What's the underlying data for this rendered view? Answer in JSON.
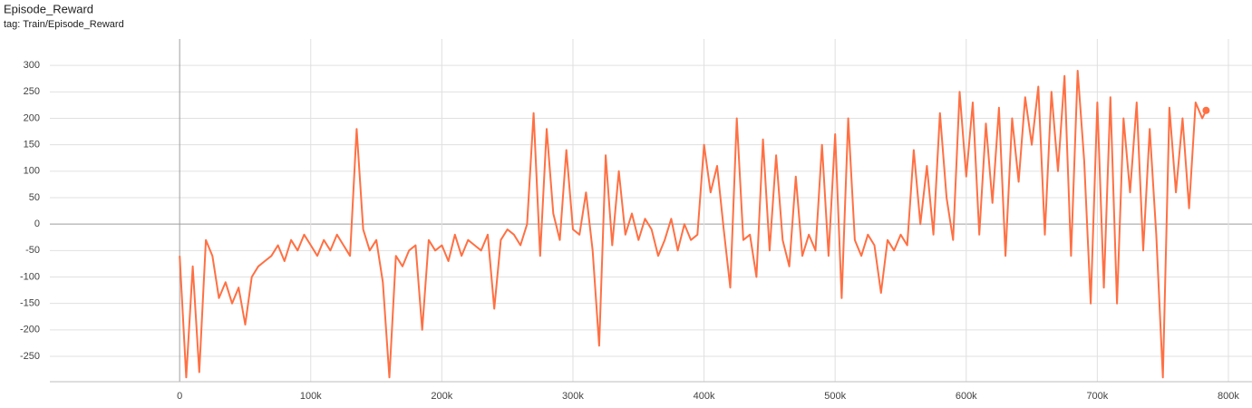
{
  "chart_data": {
    "type": "line",
    "title": "Episode_Reward",
    "subtitle": "tag: Train/Episode_Reward",
    "x": [
      0,
      5000,
      10000,
      15000,
      20000,
      25000,
      30000,
      35000,
      40000,
      45000,
      50000,
      55000,
      60000,
      65000,
      70000,
      75000,
      80000,
      85000,
      90000,
      95000,
      100000,
      105000,
      110000,
      115000,
      120000,
      125000,
      130000,
      135000,
      140000,
      145000,
      150000,
      155000,
      160000,
      165000,
      170000,
      175000,
      180000,
      185000,
      190000,
      195000,
      200000,
      205000,
      210000,
      215000,
      220000,
      225000,
      230000,
      235000,
      240000,
      245000,
      250000,
      255000,
      260000,
      265000,
      270000,
      275000,
      280000,
      285000,
      290000,
      295000,
      300000,
      305000,
      310000,
      315000,
      320000,
      325000,
      330000,
      335000,
      340000,
      345000,
      350000,
      355000,
      360000,
      365000,
      370000,
      375000,
      380000,
      385000,
      390000,
      395000,
      400000,
      405000,
      410000,
      415000,
      420000,
      425000,
      430000,
      435000,
      440000,
      445000,
      450000,
      455000,
      460000,
      465000,
      470000,
      475000,
      480000,
      485000,
      490000,
      495000,
      500000,
      505000,
      510000,
      515000,
      520000,
      525000,
      530000,
      535000,
      540000,
      545000,
      550000,
      555000,
      560000,
      565000,
      570000,
      575000,
      580000,
      585000,
      590000,
      595000,
      600000,
      605000,
      610000,
      615000,
      620000,
      625000,
      630000,
      635000,
      640000,
      645000,
      650000,
      655000,
      660000,
      665000,
      670000,
      675000,
      680000,
      685000,
      690000,
      695000,
      700000,
      705000,
      710000,
      715000,
      720000,
      725000,
      730000,
      735000,
      740000,
      745000,
      750000,
      755000,
      760000,
      765000,
      770000,
      775000,
      780000,
      783000
    ],
    "series": [
      {
        "color": "#ff7043",
        "values": [
          -60,
          -290,
          -80,
          -280,
          -30,
          -60,
          -140,
          -110,
          -150,
          -120,
          -190,
          -100,
          -80,
          -70,
          -60,
          -40,
          -70,
          -30,
          -50,
          -20,
          -40,
          -60,
          -30,
          -50,
          -20,
          -40,
          -60,
          180,
          -10,
          -50,
          -30,
          -110,
          -290,
          -60,
          -80,
          -50,
          -40,
          -200,
          -30,
          -50,
          -40,
          -70,
          -20,
          -60,
          -30,
          -40,
          -50,
          -20,
          -160,
          -30,
          -10,
          -20,
          -40,
          0,
          210,
          -60,
          180,
          20,
          -30,
          140,
          -10,
          -20,
          60,
          -50,
          -230,
          130,
          -40,
          100,
          -20,
          20,
          -30,
          10,
          -10,
          -60,
          -30,
          10,
          -50,
          0,
          -30,
          -20,
          150,
          60,
          110,
          -10,
          -120,
          200,
          -30,
          -20,
          -100,
          160,
          -50,
          130,
          -30,
          -80,
          90,
          -60,
          -20,
          -50,
          150,
          -60,
          170,
          -140,
          200,
          -30,
          -60,
          -20,
          -40,
          -130,
          -30,
          -50,
          -20,
          -40,
          140,
          0,
          110,
          -20,
          210,
          50,
          -30,
          250,
          90,
          230,
          -20,
          190,
          40,
          220,
          -60,
          200,
          80,
          240,
          150,
          260,
          -20,
          250,
          100,
          280,
          -60,
          290,
          120,
          -150,
          230,
          -120,
          240,
          -150,
          200,
          60,
          230,
          -50,
          180,
          -20,
          -290,
          220,
          60,
          200,
          30,
          230,
          200,
          215
        ]
      }
    ],
    "xlim": [
      -99000,
      818000
    ],
    "xticks": [
      {
        "value": 0,
        "label": "0"
      },
      {
        "value": 100000,
        "label": "100k"
      },
      {
        "value": 200000,
        "label": "200k"
      },
      {
        "value": 300000,
        "label": "300k"
      },
      {
        "value": 400000,
        "label": "400k"
      },
      {
        "value": 500000,
        "label": "500k"
      },
      {
        "value": 600000,
        "label": "600k"
      },
      {
        "value": 700000,
        "label": "700k"
      },
      {
        "value": 800000,
        "label": "800k"
      }
    ],
    "ylim": [
      -298,
      350
    ],
    "yticks": [
      -250,
      -200,
      -150,
      -100,
      -50,
      0,
      50,
      100,
      150,
      200,
      250,
      300
    ],
    "grid": true
  }
}
